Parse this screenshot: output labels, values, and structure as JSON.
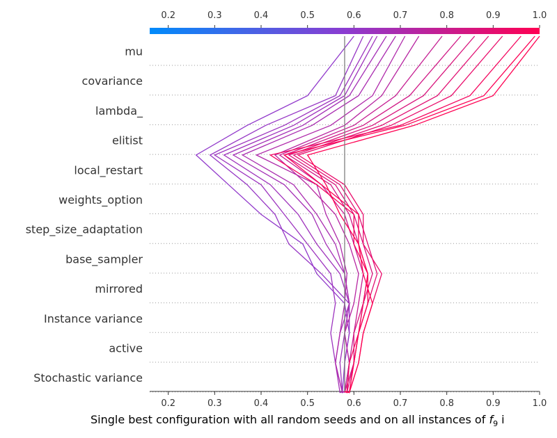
{
  "chart_data": {
    "type": "line",
    "subtype": "shap-decision-plot",
    "xlabel_main": "Single best configuration with all random seeds and on all instances of ",
    "xlabel_math": "f",
    "xlabel_sub": "9",
    "xlabel_tail": " i",
    "xlim": [
      0.16,
      1.0
    ],
    "base_value": 0.58,
    "ticks": [
      0.2,
      0.3,
      0.4,
      0.5,
      0.6,
      0.7,
      0.8,
      0.9,
      1.0
    ],
    "tick_labels": [
      "0.2",
      "0.3",
      "0.4",
      "0.5",
      "0.6",
      "0.7",
      "0.8",
      "0.9",
      "1.0"
    ],
    "features": [
      "mu",
      "covariance",
      "lambda_",
      "elitist",
      "local_restart",
      "weights_option",
      "step_size_adaptation",
      "base_sampler",
      "mirrored",
      "Instance variance",
      "active",
      "Stochastic variance"
    ],
    "colorscale": [
      "#008bfb",
      "#8b3cd1",
      "#ff0052"
    ],
    "series": [
      {
        "values": [
          0.58,
          0.575,
          0.58,
          0.59,
          0.58,
          0.52,
          0.49,
          0.4,
          0.33,
          0.26,
          0.37,
          0.5,
          0.6
        ]
      },
      {
        "values": [
          0.58,
          0.58,
          0.58,
          0.59,
          0.59,
          0.53,
          0.46,
          0.43,
          0.37,
          0.29,
          0.41,
          0.56,
          0.62
        ]
      },
      {
        "values": [
          0.58,
          0.575,
          0.56,
          0.55,
          0.56,
          0.55,
          0.5,
          0.45,
          0.4,
          0.3,
          0.45,
          0.57,
          0.64
        ]
      },
      {
        "values": [
          0.58,
          0.575,
          0.57,
          0.58,
          0.59,
          0.57,
          0.52,
          0.48,
          0.42,
          0.32,
          0.47,
          0.58,
          0.65
        ]
      },
      {
        "values": [
          0.58,
          0.57,
          0.56,
          0.57,
          0.59,
          0.58,
          0.54,
          0.51,
          0.45,
          0.34,
          0.49,
          0.59,
          0.67
        ]
      },
      {
        "values": [
          0.58,
          0.58,
          0.59,
          0.58,
          0.59,
          0.58,
          0.56,
          0.52,
          0.47,
          0.36,
          0.51,
          0.61,
          0.69
        ]
      },
      {
        "values": [
          0.58,
          0.575,
          0.56,
          0.57,
          0.58,
          0.585,
          0.57,
          0.54,
          0.52,
          0.39,
          0.55,
          0.64,
          0.71
        ]
      },
      {
        "values": [
          0.58,
          0.585,
          0.59,
          0.58,
          0.6,
          0.61,
          0.59,
          0.56,
          0.5,
          0.43,
          0.58,
          0.66,
          0.74
        ]
      },
      {
        "values": [
          0.58,
          0.58,
          0.59,
          0.6,
          0.61,
          0.62,
          0.6,
          0.58,
          0.53,
          0.44,
          0.6,
          0.69,
          0.79
        ]
      },
      {
        "values": [
          0.58,
          0.58,
          0.6,
          0.61,
          0.62,
          0.63,
          0.61,
          0.59,
          0.55,
          0.45,
          0.62,
          0.72,
          0.83
        ]
      },
      {
        "values": [
          0.58,
          0.585,
          0.6,
          0.6,
          0.62,
          0.64,
          0.62,
          0.6,
          0.56,
          0.46,
          0.64,
          0.75,
          0.86
        ]
      },
      {
        "values": [
          0.58,
          0.59,
          0.6,
          0.61,
          0.63,
          0.65,
          0.63,
          0.61,
          0.57,
          0.47,
          0.66,
          0.78,
          0.89
        ]
      },
      {
        "values": [
          0.58,
          0.59,
          0.61,
          0.62,
          0.64,
          0.66,
          0.62,
          0.62,
          0.58,
          0.48,
          0.68,
          0.81,
          0.92
        ]
      },
      {
        "values": [
          0.58,
          0.585,
          0.59,
          0.61,
          0.62,
          0.63,
          0.6,
          0.6,
          0.52,
          0.42,
          0.7,
          0.85,
          0.96
        ]
      },
      {
        "values": [
          0.58,
          0.59,
          0.6,
          0.61,
          0.63,
          0.63,
          0.61,
          0.61,
          0.53,
          0.45,
          0.71,
          0.88,
          0.99
        ]
      },
      {
        "values": [
          0.58,
          0.59,
          0.61,
          0.62,
          0.64,
          0.62,
          0.61,
          0.57,
          0.54,
          0.5,
          0.73,
          0.9,
          1.0
        ]
      }
    ]
  }
}
